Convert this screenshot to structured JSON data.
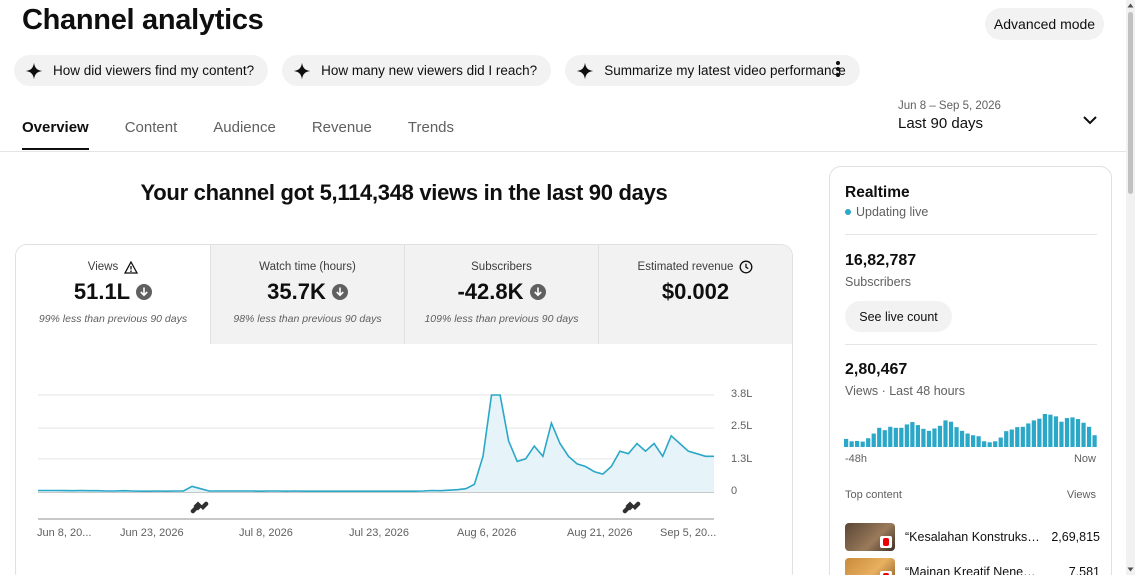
{
  "header": {
    "title": "Channel analytics",
    "advanced_mode": "Advanced mode"
  },
  "chips": [
    "How did viewers find my content?",
    "How many new viewers did I reach?",
    "Summarize my latest video performance"
  ],
  "date_range": {
    "range": "Jun 8 – Sep 5, 2026",
    "period": "Last 90 days"
  },
  "tabs": [
    "Overview",
    "Content",
    "Audience",
    "Revenue",
    "Trends"
  ],
  "headline": "Your channel got 5,114,348 views in the last 90 days",
  "metrics": [
    {
      "label": "Views",
      "value": "51.1L",
      "comparison": "99% less than previous 90 days"
    },
    {
      "label": "Watch time (hours)",
      "value": "35.7K",
      "comparison": "98% less than previous 90 days"
    },
    {
      "label": "Subscribers",
      "value": "-42.8K",
      "comparison": "109% less than previous 90 days"
    },
    {
      "label": "Estimated revenue",
      "value": "$0.002",
      "comparison": ""
    }
  ],
  "chart_data": {
    "type": "area",
    "color": "#2ba7c8",
    "x_tick_labels": [
      "Jun 8, 20...",
      "Jun 23, 2026",
      "Jul 8, 2026",
      "Jul 23, 2026",
      "Aug 6, 2026",
      "Aug 21, 2026",
      "Sep 5, 20..."
    ],
    "y_tick_labels": [
      "3.8L",
      "2.5L",
      "1.3L",
      "0"
    ],
    "y_ticks": [
      380000,
      250000,
      130000,
      0
    ],
    "ylim": [
      0,
      380000
    ],
    "grid": true,
    "series": [
      {
        "values": [
          6000,
          6000,
          6000,
          5500,
          5000,
          6000,
          5000,
          5000,
          4000,
          4000,
          5000,
          4000,
          3000,
          3000,
          4000,
          3000,
          4000,
          4000,
          22000,
          13000,
          4000,
          4000,
          4000,
          4000,
          4000,
          4000,
          3000,
          4000,
          4000,
          3000,
          4000,
          3000,
          3000,
          3000,
          3000,
          3000,
          3000,
          3000,
          3000,
          3000,
          3000,
          3000,
          3000,
          3000,
          3000,
          4000,
          6000,
          5000,
          7000,
          9000,
          13000,
          30000,
          140000,
          380000,
          380000,
          200000,
          120000,
          130000,
          180000,
          140000,
          270000,
          190000,
          140000,
          110000,
          100000,
          80000,
          70000,
          100000,
          160000,
          150000,
          190000,
          160000,
          190000,
          140000,
          220000,
          190000,
          160000,
          150000,
          140000,
          140000
        ]
      }
    ]
  },
  "realtime": {
    "title": "Realtime",
    "status": "Updating live",
    "subscribers_value": "16,82,787",
    "subscribers_label": "Subscribers",
    "live_button": "See live count",
    "views_value": "2,80,467",
    "views_label": "Views · Last 48 hours",
    "axis_start": "-48h",
    "axis_end": "Now",
    "hourly_views": [
      24,
      17,
      18,
      16,
      26,
      40,
      57,
      50,
      60,
      57,
      57,
      67,
      74,
      65,
      54,
      48,
      55,
      63,
      79,
      75,
      59,
      48,
      40,
      35,
      32,
      17,
      14,
      17,
      28,
      47,
      52,
      59,
      60,
      70,
      79,
      84,
      98,
      96,
      91,
      75,
      86,
      88,
      83,
      72,
      60,
      35
    ],
    "top_content_label": "Top content",
    "views_column_label": "Views",
    "top_content": [
      {
        "title": "“Kesalahan Konstruksi Bangunan”",
        "views": "2,69,815"
      },
      {
        "title": "“Mainan Kreatif Nenek Moyang”",
        "views": "7,581"
      }
    ]
  }
}
